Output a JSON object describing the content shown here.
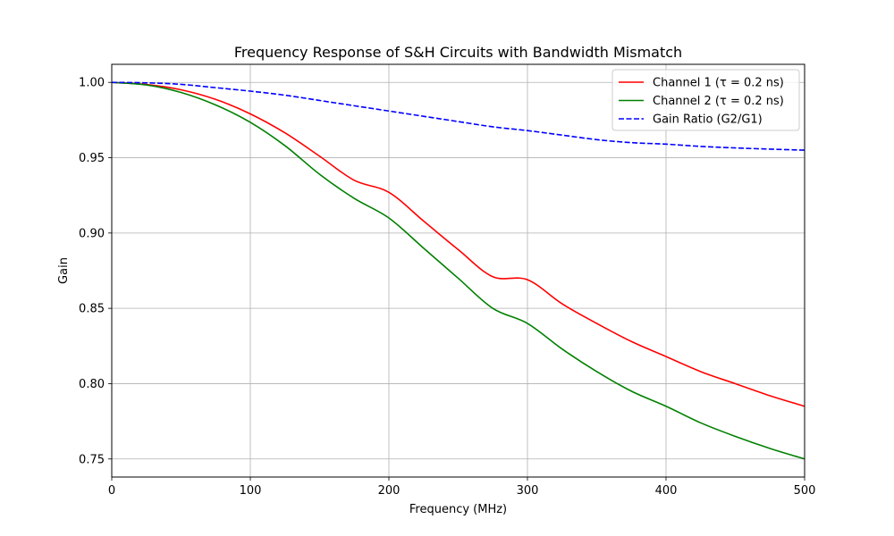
{
  "chart_data": {
    "type": "line",
    "title": "Frequency Response of S&H Circuits with Bandwidth Mismatch",
    "xlabel": "Frequency (MHz)",
    "ylabel": "Gain",
    "xlim": [
      0,
      500
    ],
    "ylim": [
      0.738,
      1.012
    ],
    "xticks": [
      0,
      100,
      200,
      300,
      400,
      500
    ],
    "xtick_labels": [
      "0",
      "100",
      "200",
      "300",
      "400",
      "500"
    ],
    "yticks": [
      0.75,
      0.8,
      0.85,
      0.9,
      0.95,
      1.0
    ],
    "ytick_labels": [
      "0.75",
      "0.80",
      "0.85",
      "0.90",
      "0.95",
      "1.00"
    ],
    "grid": true,
    "legend_position": "top-right",
    "x": [
      0,
      25,
      50,
      75,
      100,
      125,
      150,
      175,
      200,
      225,
      250,
      275,
      300,
      325,
      350,
      375,
      400,
      425,
      450,
      475,
      500
    ],
    "series": [
      {
        "name": "Channel 1 (τ = 0.2 ns)",
        "color": "#ff0000",
        "style": "solid",
        "values": [
          1.0,
          0.9986,
          0.9951,
          0.9887,
          0.9791,
          0.9665,
          0.951,
          0.935,
          0.927,
          0.908,
          0.889,
          0.871,
          0.869,
          0.853,
          0.84,
          0.828,
          0.818,
          0.808,
          0.8,
          0.792,
          0.785
        ]
      },
      {
        "name": "Channel 2 (τ = 0.2 ns)",
        "color": "#008000",
        "style": "solid",
        "values": [
          1.0,
          0.9983,
          0.9933,
          0.985,
          0.9735,
          0.958,
          0.939,
          0.923,
          0.91,
          0.89,
          0.87,
          0.85,
          0.84,
          0.823,
          0.808,
          0.795,
          0.785,
          0.774,
          0.765,
          0.757,
          0.75
        ]
      },
      {
        "name": "Gain Ratio (G2/G1)",
        "color": "#0000ff",
        "style": "dashed",
        "values": [
          1.0,
          0.9997,
          0.9987,
          0.9965,
          0.9942,
          0.9915,
          0.988,
          0.9845,
          0.981,
          0.9775,
          0.974,
          0.9705,
          0.968,
          0.965,
          0.962,
          0.96,
          0.959,
          0.9575,
          0.9565,
          0.9557,
          0.955
        ]
      }
    ]
  }
}
